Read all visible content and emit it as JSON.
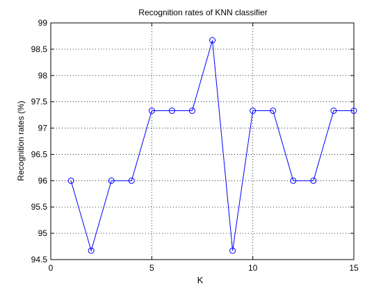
{
  "chart_data": {
    "type": "line",
    "title": "Recognition rates of KNN classifier",
    "xlabel": "K",
    "ylabel": "Recognition rates (%)",
    "xlim": [
      0,
      15
    ],
    "ylim": [
      94.5,
      99
    ],
    "xticks": [
      0,
      5,
      10,
      15
    ],
    "yticks": [
      94.5,
      95,
      95.5,
      96,
      96.5,
      97,
      97.5,
      98,
      98.5,
      99
    ],
    "grid": true,
    "grid_style": "dotted",
    "marker": "circle",
    "line_color": "#0000ff",
    "series": [
      {
        "x": [
          1,
          2,
          3,
          4,
          5,
          6,
          7,
          8,
          9,
          10,
          11,
          12,
          13,
          14,
          15
        ],
        "values": [
          96.0,
          94.67,
          96.0,
          96.0,
          97.33,
          97.33,
          97.33,
          98.67,
          94.67,
          97.33,
          97.33,
          96.0,
          96.0,
          97.33,
          97.33
        ]
      }
    ]
  }
}
